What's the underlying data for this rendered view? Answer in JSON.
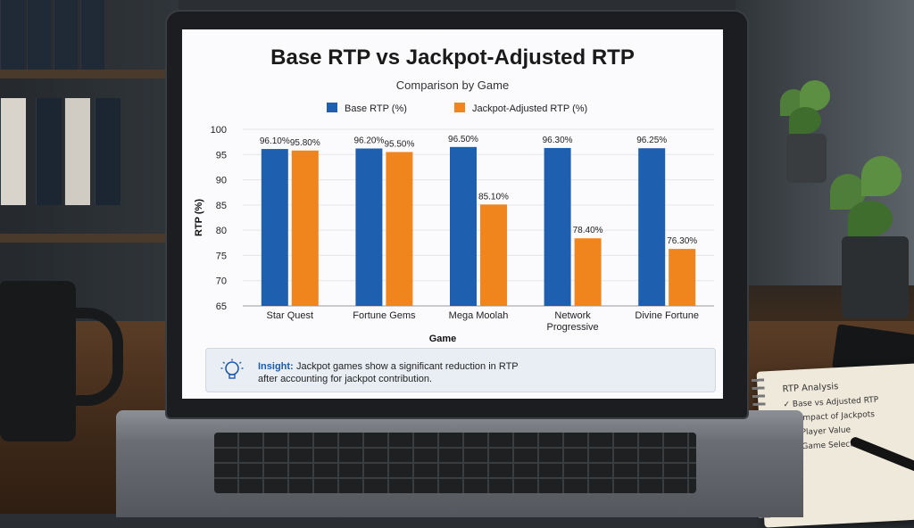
{
  "chart_data": {
    "type": "bar",
    "title": "Base RTP vs Jackpot-Adjusted RTP",
    "subtitle": "Comparison by Game",
    "xlabel": "Game",
    "ylabel": "RTP (%)",
    "ylim": [
      65,
      100
    ],
    "yticks": [
      65,
      70,
      75,
      80,
      85,
      90,
      95,
      100
    ],
    "categories": [
      "Star Quest",
      "Fortune Gems",
      "Mega Moolah",
      "Network Progressive",
      "Divine Fortune"
    ],
    "category_lines": [
      [
        "Star Quest"
      ],
      [
        "Fortune Gems"
      ],
      [
        "Mega Moolah"
      ],
      [
        "Network",
        "Progressive"
      ],
      [
        "Divine Fortune"
      ]
    ],
    "series": [
      {
        "name": "Base RTP (%)",
        "color": "#1f5fb0",
        "values": [
          96.1,
          96.2,
          96.5,
          96.3,
          96.25
        ],
        "labels": [
          "96.10%",
          "96.20%",
          "96.50%",
          "96.30%",
          "96.25%"
        ]
      },
      {
        "name": "Jackpot-Adjusted RTP (%)",
        "color": "#f0851e",
        "values": [
          95.8,
          95.5,
          85.1,
          78.4,
          76.3
        ],
        "labels": [
          "95.80%",
          "95.50%",
          "85.10%",
          "78.40%",
          "76.30%"
        ]
      }
    ],
    "grid": true,
    "legend": "top-center"
  },
  "insight": {
    "icon": "lightbulb-icon",
    "label": "Insight:",
    "text_line1": "Jackpot games show a significant reduction in RTP",
    "text_line2": "after accounting for jackpot contribution."
  },
  "notepad": {
    "title": "RTP Analysis",
    "items": [
      "✓ Base vs Adjusted RTP",
      "✓ Impact of Jackpots",
      "✓ Player Value",
      "✓ Game Selection"
    ]
  }
}
